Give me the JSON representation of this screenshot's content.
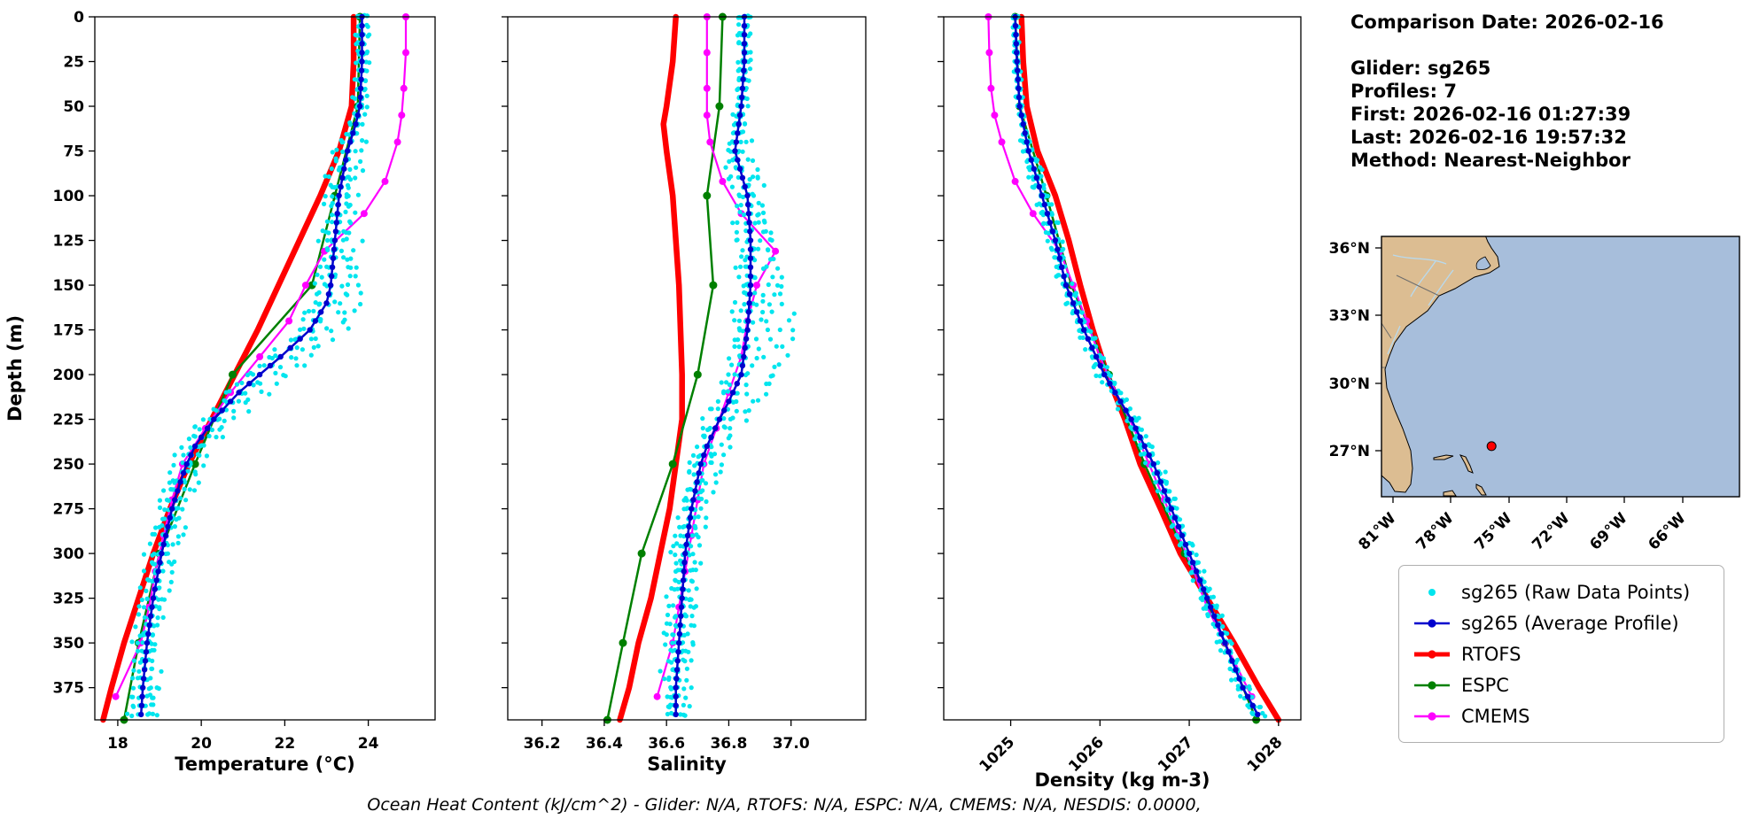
{
  "info": {
    "comparison_date": "Comparison Date: 2026-02-16",
    "lines": [
      "Glider: sg265",
      "Profiles: 7",
      "First: 2026-02-16 01:27:39",
      "Last: 2026-02-16 19:57:32",
      "Method: Nearest-Neighbor"
    ]
  },
  "footer": "Ocean Heat Content (kJ/cm^2) - Glider: N/A,  RTOFS: N/A,  ESPC: N/A,  CMEMS: N/A,  NESDIS: 0.0000,",
  "legend": {
    "entries": [
      {
        "label": "sg265 (Raw Data Points)",
        "color": "#00E5EE",
        "symbol": "dot"
      },
      {
        "label": "sg265 (Average Profile)",
        "color": "#0000CD",
        "symbol": "line-dot",
        "width": 2.5
      },
      {
        "label": "RTOFS",
        "color": "#FF0000",
        "symbol": "line-dot",
        "width": 5
      },
      {
        "label": "ESPC",
        "color": "#008000",
        "symbol": "line-dot",
        "width": 2.5
      },
      {
        "label": "CMEMS",
        "color": "#FF00FF",
        "symbol": "line-dot",
        "width": 2.5
      }
    ]
  },
  "map": {
    "xtick_labels": [
      "81°W",
      "78°W",
      "75°W",
      "72°W",
      "69°W",
      "66°W"
    ],
    "ytick_labels": [
      "36°N",
      "33°N",
      "30°N",
      "27°N"
    ],
    "marker": {
      "lon": -75.9,
      "lat": 27.2,
      "color": "#FF0000"
    },
    "ocean_color": "#a7bedb",
    "land_color": "#dcbd92"
  },
  "chart_data": [
    {
      "type": "line",
      "xlabel": "Temperature (°C)",
      "ylabel": "Depth (m)",
      "xlim": [
        17.45,
        25.6
      ],
      "ymax": 393,
      "ytick_step": 25,
      "xtick_values": [
        18,
        20,
        22,
        24
      ],
      "xtick_labels": [
        "18",
        "20",
        "22",
        "24"
      ],
      "series": [
        {
          "name": "sg265 (Raw Data Points)",
          "kind": "raw",
          "color": "#00E5EE",
          "spread": 0.25,
          "bulge": 0.55,
          "bulge_center": 175
        },
        {
          "name": "sg265 (Average Profile)",
          "kind": "avg",
          "color": "#0000CD",
          "depths": [
            0,
            25,
            50,
            60,
            75,
            100,
            125,
            150,
            160,
            175,
            190,
            200,
            210,
            225,
            240,
            250,
            260,
            275,
            300,
            325,
            350,
            375,
            393
          ],
          "values": [
            23.85,
            23.85,
            23.8,
            23.7,
            23.5,
            23.3,
            23.2,
            23.1,
            23.0,
            22.6,
            21.9,
            21.4,
            20.9,
            20.3,
            19.85,
            19.65,
            19.5,
            19.3,
            19.05,
            18.85,
            18.7,
            18.6,
            18.55
          ]
        },
        {
          "name": "RTOFS",
          "kind": "model",
          "color": "#FF0000",
          "width": 6.5,
          "marker": 0,
          "depths": [
            0,
            25,
            50,
            75,
            100,
            125,
            150,
            175,
            200,
            225,
            250,
            275,
            300,
            325,
            350,
            375,
            393
          ],
          "values": [
            23.65,
            23.65,
            23.6,
            23.3,
            22.85,
            22.35,
            21.85,
            21.35,
            20.8,
            20.25,
            19.7,
            19.25,
            18.85,
            18.5,
            18.15,
            17.85,
            17.65
          ]
        },
        {
          "name": "ESPC",
          "kind": "model",
          "color": "#008000",
          "width": 2.5,
          "marker": 4.5,
          "depths": [
            0,
            50,
            100,
            150,
            200,
            250,
            300,
            350,
            393
          ],
          "values": [
            23.8,
            23.75,
            23.2,
            22.65,
            20.75,
            19.85,
            19.0,
            18.5,
            18.15
          ]
        },
        {
          "name": "CMEMS",
          "kind": "model",
          "color": "#FF00FF",
          "width": 2.2,
          "marker": 4,
          "depths": [
            0,
            20,
            40,
            55,
            70,
            92,
            110,
            131,
            150,
            170,
            190,
            210,
            230,
            250,
            270,
            290,
            310,
            330,
            350,
            380
          ],
          "values": [
            24.9,
            24.9,
            24.85,
            24.8,
            24.7,
            24.4,
            23.9,
            22.95,
            22.5,
            22.1,
            21.4,
            20.7,
            20.1,
            19.55,
            19.3,
            19.1,
            18.9,
            18.75,
            18.55,
            17.95
          ]
        }
      ]
    },
    {
      "type": "line",
      "xlabel": "Salinity",
      "ylabel": "",
      "xlim": [
        36.09,
        37.24
      ],
      "ymax": 393,
      "ytick_step": 25,
      "xtick_values": [
        36.2,
        36.4,
        36.6,
        36.8,
        37.0
      ],
      "xtick_labels": [
        "36.2",
        "36.4",
        "36.6",
        "36.8",
        "37.0"
      ],
      "series": [
        {
          "name": "sg265 (Raw Data Points)",
          "kind": "raw",
          "color": "#00E5EE",
          "spread": 0.032,
          "bulge": 0.1,
          "bulge_center": 180
        },
        {
          "name": "sg265 (Average Profile)",
          "kind": "avg",
          "color": "#0000CD",
          "depths": [
            0,
            25,
            50,
            75,
            100,
            125,
            150,
            175,
            200,
            215,
            225,
            240,
            250,
            275,
            300,
            325,
            350,
            375,
            393
          ],
          "values": [
            36.85,
            36.85,
            36.84,
            36.82,
            36.86,
            36.87,
            36.87,
            36.86,
            36.84,
            36.8,
            36.77,
            36.73,
            36.71,
            36.68,
            36.66,
            36.65,
            36.64,
            36.63,
            36.63
          ]
        },
        {
          "name": "RTOFS",
          "kind": "model",
          "color": "#FF0000",
          "width": 6.5,
          "marker": 0,
          "depths": [
            0,
            25,
            50,
            60,
            75,
            100,
            150,
            200,
            225,
            250,
            275,
            300,
            325,
            350,
            375,
            393
          ],
          "values": [
            36.63,
            36.62,
            36.6,
            36.59,
            36.6,
            36.62,
            36.64,
            36.65,
            36.65,
            36.63,
            36.61,
            36.58,
            36.55,
            36.51,
            36.48,
            36.45
          ]
        },
        {
          "name": "ESPC",
          "kind": "model",
          "color": "#008000",
          "width": 2.5,
          "marker": 4.5,
          "depths": [
            0,
            50,
            100,
            150,
            200,
            250,
            300,
            350,
            393
          ],
          "values": [
            36.78,
            36.77,
            36.73,
            36.75,
            36.7,
            36.62,
            36.52,
            36.46,
            36.41
          ]
        },
        {
          "name": "CMEMS",
          "kind": "model",
          "color": "#FF00FF",
          "width": 2.2,
          "marker": 4,
          "depths": [
            0,
            20,
            40,
            55,
            70,
            92,
            110,
            131,
            150,
            170,
            190,
            210,
            230,
            250,
            270,
            290,
            310,
            330,
            350,
            380
          ],
          "values": [
            36.73,
            36.73,
            36.73,
            36.73,
            36.74,
            36.78,
            36.84,
            36.95,
            36.89,
            36.86,
            36.84,
            36.8,
            36.76,
            36.72,
            36.7,
            36.68,
            36.66,
            36.64,
            36.62,
            36.57
          ]
        }
      ]
    },
    {
      "type": "line",
      "xlabel": "Density (kg m-3)",
      "ylabel": "",
      "xlim": [
        1024.25,
        1028.25
      ],
      "ymax": 393,
      "ytick_step": 25,
      "xtick_values": [
        1025,
        1026,
        1027,
        1028
      ],
      "xtick_labels": [
        "1025",
        "1026",
        "1027",
        "1028"
      ],
      "rotate_xticks": true,
      "series": [
        {
          "name": "sg265 (Raw Data Points)",
          "kind": "raw",
          "color": "#00E5EE",
          "spread": 0.055,
          "bulge": 0,
          "bulge_center": 175
        },
        {
          "name": "sg265 (Average Profile)",
          "kind": "avg",
          "color": "#0000CD",
          "depths": [
            0,
            25,
            50,
            75,
            100,
            125,
            150,
            175,
            200,
            225,
            250,
            275,
            300,
            325,
            350,
            375,
            393
          ],
          "values": [
            1025.05,
            1025.07,
            1025.1,
            1025.2,
            1025.35,
            1025.5,
            1025.62,
            1025.82,
            1026.05,
            1026.35,
            1026.6,
            1026.8,
            1027.0,
            1027.2,
            1027.4,
            1027.6,
            1027.8
          ]
        },
        {
          "name": "RTOFS",
          "kind": "model",
          "color": "#FF0000",
          "width": 6.5,
          "marker": 0,
          "depths": [
            0,
            25,
            50,
            75,
            100,
            125,
            150,
            175,
            200,
            225,
            250,
            275,
            300,
            325,
            350,
            375,
            393
          ],
          "values": [
            1025.12,
            1025.14,
            1025.18,
            1025.3,
            1025.5,
            1025.65,
            1025.78,
            1025.92,
            1026.08,
            1026.28,
            1026.45,
            1026.68,
            1026.9,
            1027.2,
            1027.5,
            1027.78,
            1028.0
          ]
        },
        {
          "name": "ESPC",
          "kind": "model",
          "color": "#008000",
          "width": 2.5,
          "marker": 4.5,
          "depths": [
            0,
            50,
            100,
            150,
            200,
            250,
            300,
            350,
            393
          ],
          "values": [
            1025.05,
            1025.1,
            1025.4,
            1025.68,
            1026.1,
            1026.5,
            1026.95,
            1027.4,
            1027.75
          ]
        },
        {
          "name": "CMEMS",
          "kind": "model",
          "color": "#FF00FF",
          "width": 2.2,
          "marker": 4,
          "depths": [
            0,
            20,
            40,
            55,
            70,
            92,
            110,
            131,
            150,
            170,
            190,
            210,
            230,
            250,
            270,
            290,
            310,
            330,
            350,
            380
          ],
          "values": [
            1024.75,
            1024.76,
            1024.78,
            1024.82,
            1024.9,
            1025.05,
            1025.25,
            1025.55,
            1025.7,
            1025.85,
            1026.0,
            1026.18,
            1026.38,
            1026.55,
            1026.72,
            1026.88,
            1027.05,
            1027.2,
            1027.4,
            1027.7
          ]
        }
      ]
    }
  ]
}
